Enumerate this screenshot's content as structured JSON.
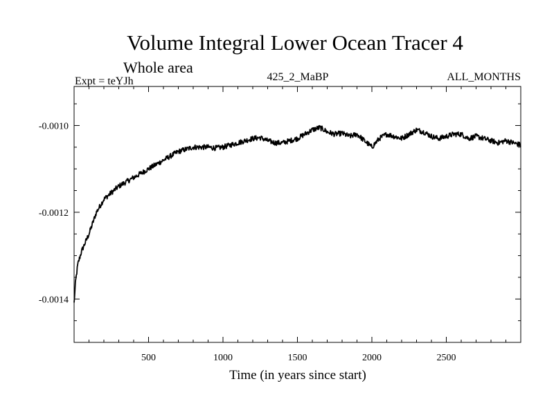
{
  "chart_data": {
    "type": "line",
    "title": "Volume Integral Lower Ocean Tracer 4",
    "subtitle": "Whole area",
    "expt_label": "Expt = teYJh",
    "run_label": "425_2_MaBP",
    "period_label": "ALL_MONTHS",
    "xlabel": "Time (in years since start)",
    "ylabel": "",
    "xlim": [
      0,
      3000
    ],
    "ylim": [
      -0.0015,
      -0.00091
    ],
    "x_ticks": [
      500,
      1000,
      1500,
      2000,
      2500
    ],
    "x_tick_labels": [
      "500",
      "1000",
      "1500",
      "2000",
      "2500"
    ],
    "y_ticks": [
      -0.001,
      -0.0012,
      -0.0014
    ],
    "y_tick_labels": [
      "-0.0010",
      "-0.0012",
      "-0.0014"
    ],
    "grid": false,
    "noise_amplitude": 6e-06,
    "series": [
      {
        "name": "Volume Integral Lower Ocean Tracer 4",
        "color": "#000000",
        "x": [
          0,
          10,
          25,
          50,
          100,
          150,
          200,
          250,
          300,
          350,
          400,
          450,
          500,
          550,
          600,
          650,
          700,
          750,
          800,
          850,
          900,
          950,
          1000,
          1050,
          1100,
          1150,
          1200,
          1250,
          1300,
          1350,
          1400,
          1450,
          1500,
          1550,
          1600,
          1650,
          1680,
          1700,
          1750,
          1800,
          1850,
          1900,
          1950,
          2000,
          2050,
          2100,
          2150,
          2200,
          2250,
          2300,
          2350,
          2400,
          2450,
          2500,
          2550,
          2600,
          2650,
          2700,
          2750,
          2800,
          2850,
          2900,
          2950,
          3000
        ],
        "values": [
          -0.00141,
          -0.00136,
          -0.00132,
          -0.00129,
          -0.00125,
          -0.0012,
          -0.00117,
          -0.001155,
          -0.00114,
          -0.00113,
          -0.00112,
          -0.00111,
          -0.0011,
          -0.00109,
          -0.00108,
          -0.00107,
          -0.00106,
          -0.001055,
          -0.00105,
          -0.00105,
          -0.00105,
          -0.001052,
          -0.00105,
          -0.001045,
          -0.00104,
          -0.001035,
          -0.00103,
          -0.001028,
          -0.001035,
          -0.00104,
          -0.00104,
          -0.001035,
          -0.00103,
          -0.00102,
          -0.00101,
          -0.001005,
          -0.00101,
          -0.001015,
          -0.00102,
          -0.001018,
          -0.001025,
          -0.00102,
          -0.001035,
          -0.00105,
          -0.00103,
          -0.00102,
          -0.001025,
          -0.00103,
          -0.00102,
          -0.00101,
          -0.001015,
          -0.001025,
          -0.00103,
          -0.001025,
          -0.00102,
          -0.00102,
          -0.00103,
          -0.001025,
          -0.00103,
          -0.001035,
          -0.00104,
          -0.001035,
          -0.00104,
          -0.001045
        ]
      }
    ]
  }
}
